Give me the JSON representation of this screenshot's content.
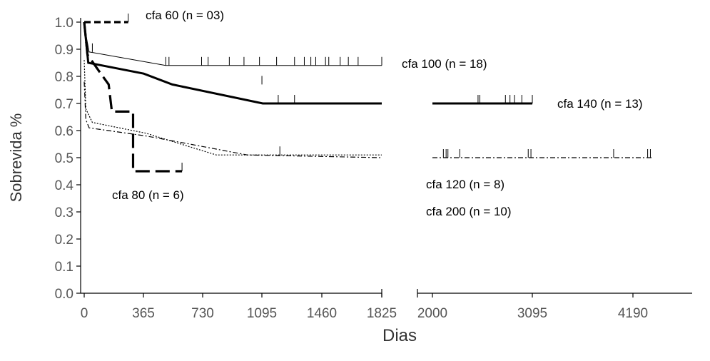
{
  "chart_data": {
    "type": "line",
    "subtype": "kaplan-meier survival curves (step)",
    "xlabel": "Dias",
    "ylabel": "Sobrevida %",
    "x_axis_break": [
      1825,
      2000
    ],
    "xticks": [
      0,
      365,
      730,
      1095,
      1460,
      1825,
      2000,
      3095,
      4190
    ],
    "xtick_labels": [
      "0",
      "365",
      "730",
      "1095",
      "1460",
      "1825",
      "2000",
      "3095",
      "4190"
    ],
    "yticks": [
      0.0,
      0.1,
      0.2,
      0.3,
      0.4,
      0.5,
      0.6,
      0.7,
      0.8,
      0.9,
      1.0
    ],
    "ytick_labels": [
      "0.0",
      "0.1",
      "0.2",
      "0.3",
      "0.4",
      "0.5",
      "0.6",
      "0.7",
      "0.8",
      "0.9",
      "1.0"
    ],
    "ylim": [
      0.0,
      1.0
    ],
    "grid": false,
    "series": [
      {
        "name": "cfa 60 (n = 03)",
        "style": "thick-dashed",
        "points": [
          [
            0,
            1.0
          ],
          [
            270,
            1.0
          ]
        ],
        "censored": [
          270
        ]
      },
      {
        "name": "cfa 100 (n = 18)",
        "style": "thin-solid",
        "points": [
          [
            0,
            1.0
          ],
          [
            15,
            0.94
          ],
          [
            30,
            0.89
          ],
          [
            500,
            0.84
          ],
          [
            1825,
            0.84
          ]
        ],
        "censored": [
          50,
          500,
          520,
          720,
          760,
          890,
          980,
          1075,
          1180,
          1290,
          1350,
          1390,
          1420,
          1480,
          1500,
          1570,
          1620,
          1680,
          1825
        ]
      },
      {
        "name": "cfa 140 (n = 13)",
        "style": "thick-solid",
        "points": [
          [
            0,
            1.0
          ],
          [
            25,
            0.85
          ],
          [
            365,
            0.81
          ],
          [
            540,
            0.77
          ],
          [
            1095,
            0.7
          ],
          [
            1825,
            0.7
          ],
          [
            2000,
            0.7
          ],
          [
            3095,
            0.7
          ]
        ],
        "censored": [
          1090,
          1190,
          1290,
          2500,
          2520,
          2800,
          2850,
          2900,
          2980,
          3095
        ]
      },
      {
        "name": "cfa 80 (n = 6)",
        "style": "thick-long-dash",
        "points": [
          [
            0,
            1.0
          ],
          [
            20,
            0.88
          ],
          [
            90,
            0.82
          ],
          [
            150,
            0.77
          ],
          [
            170,
            0.67
          ],
          [
            300,
            0.67
          ],
          [
            300,
            0.45
          ],
          [
            600,
            0.45
          ]
        ],
        "censored": [
          600
        ]
      },
      {
        "name": "cfa 120 (n = 8)",
        "style": "dotted",
        "points": [
          [
            0,
            0.86
          ],
          [
            10,
            0.68
          ],
          [
            50,
            0.63
          ],
          [
            380,
            0.59
          ],
          [
            540,
            0.56
          ],
          [
            810,
            0.51
          ],
          [
            1825,
            0.51
          ]
        ],
        "censored": []
      },
      {
        "name": "cfa 200 (n = 10)",
        "style": "dash-dot",
        "points": [
          [
            0,
            0.78
          ],
          [
            10,
            0.64
          ],
          [
            30,
            0.61
          ],
          [
            380,
            0.58
          ],
          [
            560,
            0.56
          ],
          [
            1000,
            0.51
          ],
          [
            1825,
            0.5
          ],
          [
            2000,
            0.5
          ],
          [
            4400,
            0.5
          ]
        ],
        "censored": [
          1200,
          2120,
          2150,
          2170,
          2300,
          3050,
          3080,
          3980,
          4350,
          4380
        ]
      }
    ],
    "annotations": [
      {
        "text": "cfa 60 (n = 03)",
        "series": "cfa 60 (n = 03)"
      },
      {
        "text": "cfa 100 (n = 18)",
        "series": "cfa 100 (n = 18)"
      },
      {
        "text": "cfa 140 (n = 13)",
        "series": "cfa 140 (n = 13)"
      },
      {
        "text": "cfa 80 (n = 6)",
        "series": "cfa 80 (n = 6)"
      },
      {
        "text": "cfa 120 (n = 8)",
        "series": "cfa 120 (n = 8)"
      },
      {
        "text": "cfa 200 (n = 10)",
        "series": "cfa 200 (n = 10)"
      }
    ]
  }
}
